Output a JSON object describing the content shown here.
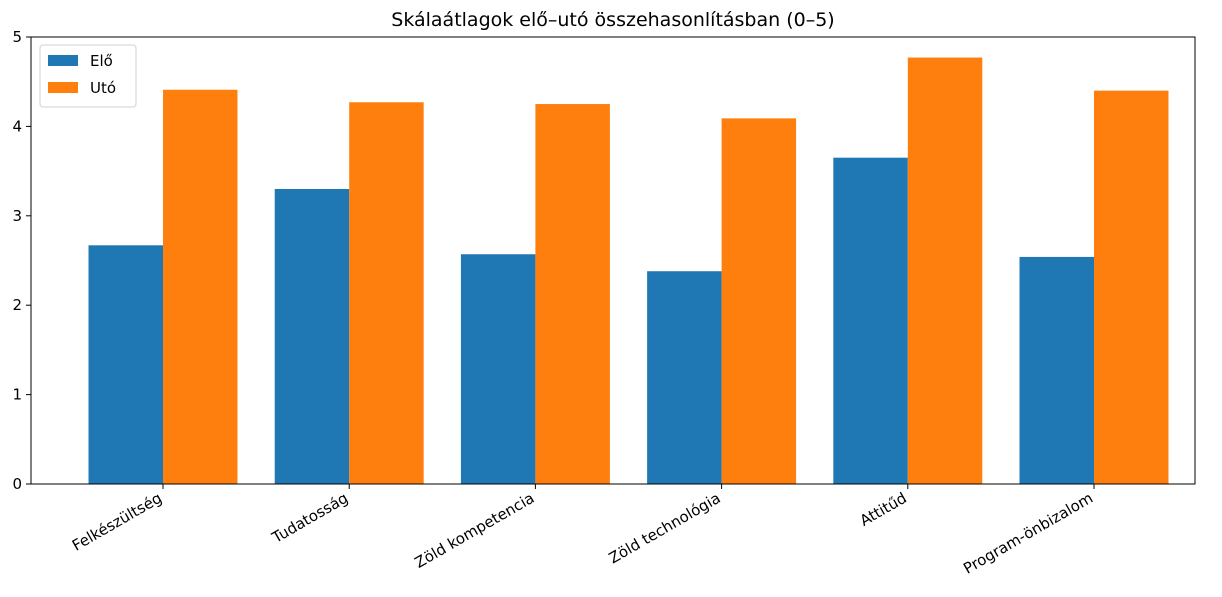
{
  "chart_data": {
    "type": "bar",
    "title": "Skálaátlagok elő–utó összehasonlításban (0–5)",
    "categories": [
      "Felkészültség",
      "Tudatosság",
      "Zöld kompetencia",
      "Zöld technológia",
      "Attitűd",
      "Program-önbizalom"
    ],
    "series": [
      {
        "name": "Elő",
        "color": "#1f77b4",
        "values": [
          2.67,
          3.3,
          2.57,
          2.38,
          3.65,
          2.54
        ]
      },
      {
        "name": "Utó",
        "color": "#ff7f0e",
        "values": [
          4.41,
          4.27,
          4.25,
          4.09,
          4.77,
          4.4
        ]
      }
    ],
    "ylim": [
      0,
      5
    ],
    "yticks": [
      0,
      1,
      2,
      3,
      4,
      5
    ],
    "grid": false,
    "legend": "upper left"
  }
}
